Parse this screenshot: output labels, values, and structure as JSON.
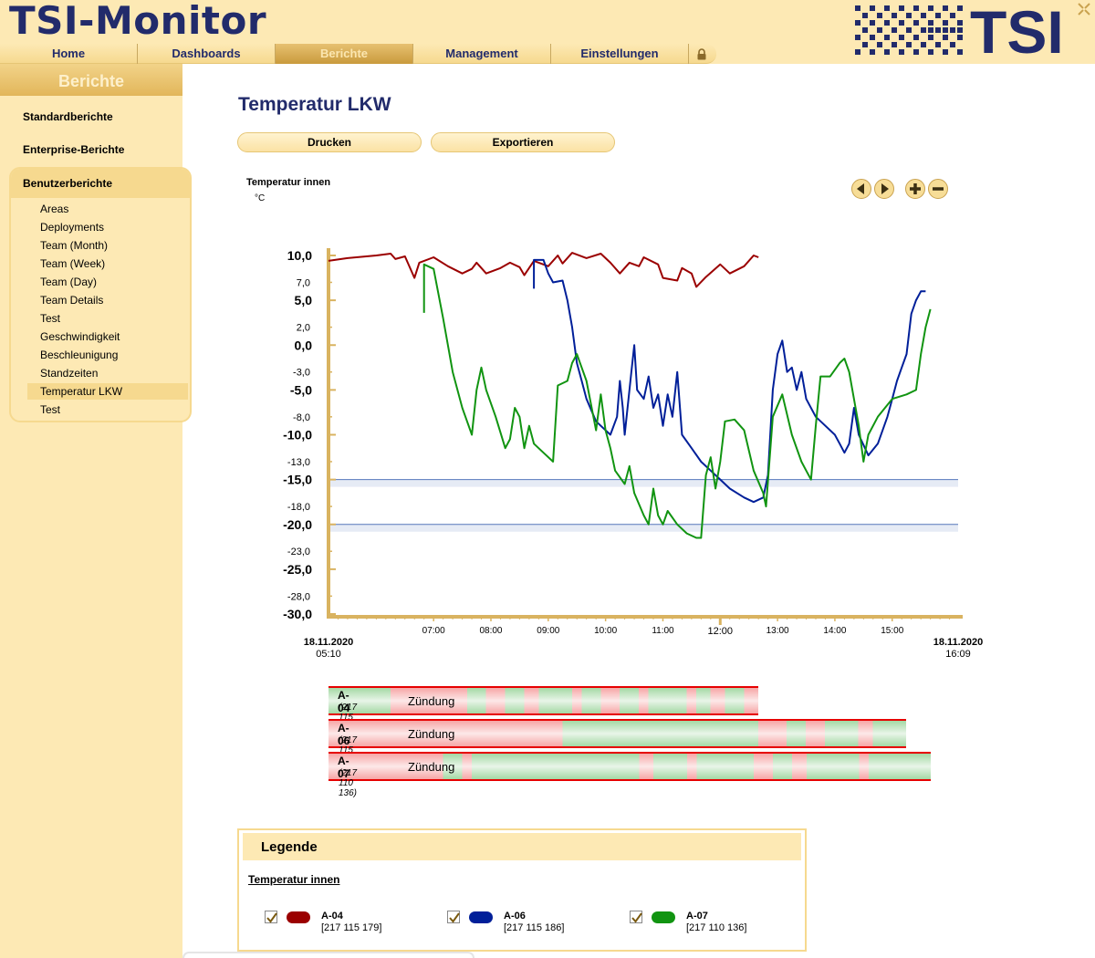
{
  "app": {
    "title": "TSI-Monitor",
    "logo_text": "TSI"
  },
  "nav": {
    "tabs": [
      {
        "label": "Home",
        "active": false
      },
      {
        "label": "Dashboards",
        "active": false
      },
      {
        "label": "Berichte",
        "active": true
      },
      {
        "label": "Management",
        "active": false
      },
      {
        "label": "Einstellungen",
        "active": false
      }
    ]
  },
  "sidebar": {
    "title": "Berichte",
    "main_items": [
      "Standardberichte",
      "Enterprise-Berichte",
      "Benutzerberichte"
    ],
    "sub_items": [
      "Areas",
      "Deployments",
      "Team (Month)",
      "Team (Week)",
      "Team (Day)",
      "Team Details",
      "Test",
      "Geschwindigkeit",
      "Beschleunigung",
      "Standzeiten",
      "Temperatur LKW",
      "Test"
    ],
    "selected_sub": "Temperatur LKW"
  },
  "page": {
    "title": "Temperatur LKW",
    "print_label": "Drucken",
    "export_label": "Exportieren"
  },
  "colors": {
    "A-04": "#9b0000",
    "A-06": "#001f99",
    "A-07": "#119411",
    "accent": "#f6d98f",
    "brand": "#222b6b"
  },
  "chart_data": {
    "type": "line",
    "title": "Temperatur innen",
    "ylabel": "°C",
    "ylim": [
      -30,
      10
    ],
    "y_major_ticks": [
      "10,0",
      "5,0",
      "0,0",
      "-5,0",
      "-10,0",
      "-15,0",
      "-20,0",
      "-25,0",
      "-30,0"
    ],
    "y_minor_ticks": [
      "7,0",
      "2,0",
      "-3,0",
      "-8,0",
      "-13,0",
      "-18,0",
      "-23,0",
      "-28,0"
    ],
    "x_ticks": [
      "07:00",
      "08:00",
      "09:00",
      "10:00",
      "11:00",
      "12:00",
      "13:00",
      "14:00",
      "15:00"
    ],
    "x_start": {
      "date": "18.11.2020",
      "time": "05:10"
    },
    "x_end": {
      "date": "18.11.2020",
      "time": "16:09"
    },
    "thresholds": [
      -15,
      -20
    ],
    "series": [
      {
        "name": "A-04",
        "points": [
          [
            "05:10",
            9.4
          ],
          [
            "05:30",
            9.7
          ],
          [
            "06:00",
            10.0
          ],
          [
            "06:15",
            10.2
          ],
          [
            "06:20",
            9.6
          ],
          [
            "06:30",
            9.9
          ],
          [
            "06:40",
            7.5
          ],
          [
            "06:45",
            9.2
          ],
          [
            "07:00",
            9.8
          ],
          [
            "07:15",
            8.8
          ],
          [
            "07:30",
            8.0
          ],
          [
            "07:40",
            8.5
          ],
          [
            "07:45",
            9.2
          ],
          [
            "07:55",
            8.0
          ],
          [
            "08:10",
            8.6
          ],
          [
            "08:20",
            9.2
          ],
          [
            "08:30",
            8.7
          ],
          [
            "08:35",
            7.8
          ],
          [
            "08:45",
            9.4
          ],
          [
            "09:00",
            8.8
          ],
          [
            "09:10",
            10.0
          ],
          [
            "09:15",
            9.1
          ],
          [
            "09:25",
            10.3
          ],
          [
            "09:40",
            9.7
          ],
          [
            "09:55",
            10.2
          ],
          [
            "10:05",
            9.2
          ],
          [
            "10:15",
            8.0
          ],
          [
            "10:25",
            9.2
          ],
          [
            "10:35",
            8.8
          ],
          [
            "10:40",
            9.8
          ],
          [
            "10:55",
            9.0
          ],
          [
            "11:00",
            7.5
          ],
          [
            "11:15",
            7.2
          ],
          [
            "11:20",
            8.6
          ],
          [
            "11:30",
            8.0
          ],
          [
            "11:35",
            6.5
          ],
          [
            "11:45",
            7.6
          ],
          [
            "12:00",
            9.0
          ],
          [
            "12:10",
            8.0
          ],
          [
            "12:25",
            8.8
          ],
          [
            "12:35",
            10.0
          ],
          [
            "12:40",
            9.8
          ]
        ]
      },
      {
        "name": "A-06",
        "points": [
          [
            "08:45",
            6.3
          ],
          [
            "08:45",
            9.5
          ],
          [
            "08:55",
            9.5
          ],
          [
            "09:00",
            8.0
          ],
          [
            "09:05",
            7.0
          ],
          [
            "09:15",
            7.2
          ],
          [
            "09:20",
            5.0
          ],
          [
            "09:25",
            2.0
          ],
          [
            "09:30",
            -2.0
          ],
          [
            "09:35",
            -4.0
          ],
          [
            "09:40",
            -6.0
          ],
          [
            "09:50",
            -8.5
          ],
          [
            "10:05",
            -10.0
          ],
          [
            "10:12",
            -8.0
          ],
          [
            "10:15",
            -4.0
          ],
          [
            "10:18",
            -7.0
          ],
          [
            "10:20",
            -10.0
          ],
          [
            "10:27",
            -3.0
          ],
          [
            "10:30",
            0.0
          ],
          [
            "10:33",
            -5.0
          ],
          [
            "10:40",
            -6.0
          ],
          [
            "10:45",
            -3.5
          ],
          [
            "10:50",
            -7.0
          ],
          [
            "10:55",
            -5.5
          ],
          [
            "11:00",
            -9.0
          ],
          [
            "11:05",
            -5.5
          ],
          [
            "11:10",
            -8.0
          ],
          [
            "11:15",
            -3.0
          ],
          [
            "11:20",
            -10.0
          ],
          [
            "11:30",
            -11.5
          ],
          [
            "11:40",
            -13.0
          ],
          [
            "11:50",
            -14.0
          ],
          [
            "12:00",
            -15.0
          ],
          [
            "12:10",
            -16.0
          ],
          [
            "12:25",
            -17.0
          ],
          [
            "12:35",
            -17.5
          ],
          [
            "12:45",
            -17.0
          ],
          [
            "12:50",
            -14.5
          ],
          [
            "12:55",
            -5.0
          ],
          [
            "13:00",
            -1.0
          ],
          [
            "13:05",
            0.5
          ],
          [
            "13:10",
            -3.0
          ],
          [
            "13:15",
            -2.5
          ],
          [
            "13:20",
            -5.0
          ],
          [
            "13:25",
            -3.0
          ],
          [
            "13:30",
            -6.0
          ],
          [
            "13:40",
            -8.0
          ],
          [
            "13:50",
            -9.0
          ],
          [
            "14:00",
            -10.0
          ],
          [
            "14:05",
            -11.0
          ],
          [
            "14:10",
            -12.0
          ],
          [
            "14:15",
            -11.0
          ],
          [
            "14:20",
            -7.0
          ],
          [
            "14:25",
            -10.0
          ],
          [
            "14:35",
            -12.3
          ],
          [
            "14:45",
            -11.0
          ],
          [
            "14:55",
            -8.0
          ],
          [
            "15:00",
            -6.0
          ],
          [
            "15:05",
            -4.0
          ],
          [
            "15:10",
            -2.5
          ],
          [
            "15:15",
            -1.0
          ],
          [
            "15:20",
            3.5
          ],
          [
            "15:25",
            5.0
          ],
          [
            "15:30",
            6.0
          ],
          [
            "15:35",
            6.0
          ]
        ]
      },
      {
        "name": "A-07",
        "points": [
          [
            "06:50",
            3.6
          ],
          [
            "06:50",
            9.0
          ],
          [
            "07:00",
            8.5
          ],
          [
            "07:10",
            3.0
          ],
          [
            "07:20",
            -3.0
          ],
          [
            "07:30",
            -7.0
          ],
          [
            "07:40",
            -10.0
          ],
          [
            "07:45",
            -5.0
          ],
          [
            "07:50",
            -2.5
          ],
          [
            "07:55",
            -5.0
          ],
          [
            "08:05",
            -8.0
          ],
          [
            "08:15",
            -11.5
          ],
          [
            "08:20",
            -10.5
          ],
          [
            "08:25",
            -7.0
          ],
          [
            "08:30",
            -8.0
          ],
          [
            "08:35",
            -11.5
          ],
          [
            "08:40",
            -9.0
          ],
          [
            "08:45",
            -11.0
          ],
          [
            "08:55",
            -12.0
          ],
          [
            "09:05",
            -13.0
          ],
          [
            "09:10",
            -4.5
          ],
          [
            "09:20",
            -4.0
          ],
          [
            "09:25",
            -2.0
          ],
          [
            "09:30",
            -1.0
          ],
          [
            "09:40",
            -4.0
          ],
          [
            "09:50",
            -9.5
          ],
          [
            "09:55",
            -5.5
          ],
          [
            "10:00",
            -9.5
          ],
          [
            "10:05",
            -11.5
          ],
          [
            "10:10",
            -14.0
          ],
          [
            "10:20",
            -15.5
          ],
          [
            "10:25",
            -13.5
          ],
          [
            "10:30",
            -16.5
          ],
          [
            "10:40",
            -19.0
          ],
          [
            "10:45",
            -20.0
          ],
          [
            "10:50",
            -16.0
          ],
          [
            "10:55",
            -19.0
          ],
          [
            "11:00",
            -20.0
          ],
          [
            "11:05",
            -18.5
          ],
          [
            "11:15",
            -20.0
          ],
          [
            "11:25",
            -21.0
          ],
          [
            "11:35",
            -21.5
          ],
          [
            "11:40",
            -21.5
          ],
          [
            "11:45",
            -14.5
          ],
          [
            "11:50",
            -12.5
          ],
          [
            "11:55",
            -16.0
          ],
          [
            "12:00",
            -13.0
          ],
          [
            "12:05",
            -8.5
          ],
          [
            "12:15",
            -8.3
          ],
          [
            "12:25",
            -9.5
          ],
          [
            "12:35",
            -14.0
          ],
          [
            "12:45",
            -16.5
          ],
          [
            "12:48",
            -18.0
          ],
          [
            "12:55",
            -8.0
          ],
          [
            "13:05",
            -5.5
          ],
          [
            "13:15",
            -10.0
          ],
          [
            "13:25",
            -13.0
          ],
          [
            "13:30",
            -14.0
          ],
          [
            "13:35",
            -15.0
          ],
          [
            "13:40",
            -9.0
          ],
          [
            "13:45",
            -3.5
          ],
          [
            "13:55",
            -3.5
          ],
          [
            "14:05",
            -2.0
          ],
          [
            "14:10",
            -1.5
          ],
          [
            "14:15",
            -3.0
          ],
          [
            "14:25",
            -9.0
          ],
          [
            "14:30",
            -13.0
          ],
          [
            "14:35",
            -10.0
          ],
          [
            "14:45",
            -8.0
          ],
          [
            "15:00",
            -6.0
          ],
          [
            "15:15",
            -5.5
          ],
          [
            "15:25",
            -5.0
          ],
          [
            "15:30",
            -1.0
          ],
          [
            "15:35",
            2.0
          ],
          [
            "15:40",
            4.0
          ]
        ]
      }
    ]
  },
  "ignition": {
    "label": "Zündung",
    "rows": [
      {
        "name": "A-04",
        "id": "(217 115 179)",
        "start": "05:10",
        "end": "12:40",
        "segments": [
          [
            "05:10",
            "06:15",
            "g"
          ],
          [
            "06:15",
            "07:35",
            "r"
          ],
          [
            "07:35",
            "07:55",
            "g"
          ],
          [
            "07:55",
            "08:15",
            "r"
          ],
          [
            "08:15",
            "08:35",
            "g"
          ],
          [
            "08:35",
            "08:50",
            "r"
          ],
          [
            "08:50",
            "09:25",
            "g"
          ],
          [
            "09:25",
            "09:35",
            "r"
          ],
          [
            "09:35",
            "09:55",
            "g"
          ],
          [
            "09:55",
            "10:15",
            "r"
          ],
          [
            "10:15",
            "10:35",
            "g"
          ],
          [
            "10:35",
            "10:45",
            "r"
          ],
          [
            "10:45",
            "11:25",
            "g"
          ],
          [
            "11:25",
            "11:35",
            "r"
          ],
          [
            "11:35",
            "11:50",
            "g"
          ],
          [
            "11:50",
            "12:05",
            "r"
          ],
          [
            "12:05",
            "12:25",
            "g"
          ],
          [
            "12:25",
            "12:40",
            "r"
          ]
        ]
      },
      {
        "name": "A-06",
        "id": "(217 115 186)",
        "start": "05:10",
        "end": "15:15",
        "segments": [
          [
            "05:10",
            "09:15",
            "r"
          ],
          [
            "09:15",
            "12:40",
            "g"
          ],
          [
            "12:40",
            "13:10",
            "r"
          ],
          [
            "13:10",
            "13:30",
            "g"
          ],
          [
            "13:30",
            "13:50",
            "r"
          ],
          [
            "13:50",
            "14:25",
            "g"
          ],
          [
            "14:25",
            "14:40",
            "r"
          ],
          [
            "14:40",
            "15:15",
            "g"
          ]
        ]
      },
      {
        "name": "A-07",
        "id": "(217 110 136)",
        "start": "05:10",
        "end": "15:40",
        "segments": [
          [
            "05:10",
            "07:10",
            "r"
          ],
          [
            "07:10",
            "07:30",
            "g"
          ],
          [
            "07:30",
            "07:40",
            "r"
          ],
          [
            "07:40",
            "10:35",
            "g"
          ],
          [
            "10:35",
            "10:50",
            "r"
          ],
          [
            "10:50",
            "11:25",
            "g"
          ],
          [
            "11:25",
            "11:35",
            "r"
          ],
          [
            "11:35",
            "12:35",
            "g"
          ],
          [
            "12:35",
            "12:55",
            "r"
          ],
          [
            "12:55",
            "13:15",
            "g"
          ],
          [
            "13:15",
            "13:30",
            "r"
          ],
          [
            "13:30",
            "14:25",
            "g"
          ],
          [
            "14:25",
            "14:35",
            "r"
          ],
          [
            "14:35",
            "15:40",
            "g"
          ]
        ]
      }
    ]
  },
  "legend": {
    "title": "Legende",
    "subtitle": "Temperatur innen",
    "items": [
      {
        "name": "A-04",
        "id": "[217 115 179]",
        "checked": true
      },
      {
        "name": "A-06",
        "id": "[217 115 186]",
        "checked": true
      },
      {
        "name": "A-07",
        "id": "[217 110 136]",
        "checked": true
      }
    ]
  },
  "icons": {
    "prev": "arrow-left-icon",
    "next": "arrow-right-icon",
    "zoom_in": "plus-icon",
    "zoom_out": "minus-icon",
    "lock": "lock-icon"
  }
}
